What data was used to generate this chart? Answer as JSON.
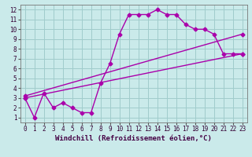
{
  "xlabel": "Windchill (Refroidissement éolien,°C)",
  "bg_color": "#caeaea",
  "grid_color": "#a0cccc",
  "line_color": "#aa00aa",
  "xlim": [
    -0.5,
    23.5
  ],
  "ylim": [
    0.5,
    12.5
  ],
  "xticks": [
    0,
    1,
    2,
    3,
    4,
    5,
    6,
    7,
    8,
    9,
    10,
    11,
    12,
    13,
    14,
    15,
    16,
    17,
    18,
    19,
    20,
    21,
    22,
    23
  ],
  "yticks": [
    1,
    2,
    3,
    4,
    5,
    6,
    7,
    8,
    9,
    10,
    11,
    12
  ],
  "line1_x": [
    0,
    1,
    2,
    3,
    4,
    5,
    6,
    7,
    8,
    9,
    10,
    11,
    12,
    13,
    14,
    15,
    16,
    17,
    18,
    19,
    20,
    21,
    22,
    23
  ],
  "line1_y": [
    3,
    1,
    3.5,
    2,
    2.5,
    2,
    1.5,
    1.5,
    4.5,
    6.5,
    9.5,
    11.5,
    11.5,
    11.5,
    12,
    11.5,
    11.5,
    10.5,
    10,
    10,
    9.5,
    7.5,
    7.5,
    7.5
  ],
  "line2_x": [
    0,
    23
  ],
  "line2_y": [
    3.0,
    7.5
  ],
  "line3_x": [
    0,
    23
  ],
  "line3_y": [
    3.2,
    9.5
  ],
  "marker": "D",
  "markersize": 2.5,
  "linewidth": 1.0,
  "tick_fontsize": 5.5,
  "label_fontsize": 6.5
}
